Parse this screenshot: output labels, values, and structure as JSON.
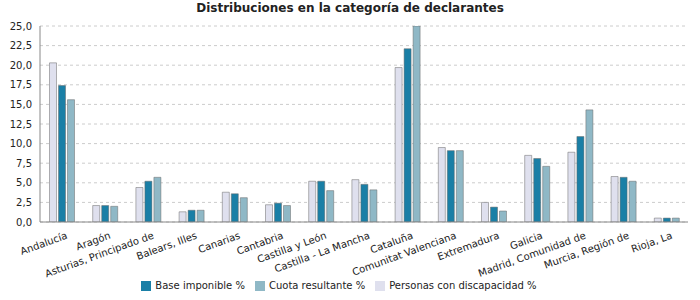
{
  "chart_data": {
    "type": "bar",
    "title": "Distribuciones en la categoría de declarantes",
    "categories": [
      "Andalucía",
      "Aragón",
      "Asturias, Principado de",
      "Balears, Illes",
      "Canarias",
      "Cantabria",
      "Castilla y León",
      "Castilla - La Mancha",
      "Cataluña",
      "Comunitat Valenciana",
      "Extremadura",
      "Galicia",
      "Madrid, Comunidad de",
      "Murcia, Región de",
      "Rioja, La"
    ],
    "series": [
      {
        "name": "Personas con discapacidad %",
        "color": "#dfe0ee",
        "values": [
          20.3,
          2.1,
          4.4,
          1.3,
          3.8,
          2.2,
          5.2,
          5.4,
          19.7,
          9.5,
          2.5,
          8.5,
          8.9,
          5.8,
          0.5
        ]
      },
      {
        "name": "Base imponible %",
        "color": "#1a7fa6",
        "values": [
          17.4,
          2.1,
          5.2,
          1.5,
          3.6,
          2.4,
          5.2,
          4.8,
          22.1,
          9.1,
          1.9,
          8.1,
          10.9,
          5.7,
          0.5
        ]
      },
      {
        "name": "Cuota resultante %",
        "color": "#8fb8c6",
        "values": [
          15.6,
          2.0,
          5.7,
          1.5,
          3.1,
          2.1,
          4.0,
          4.1,
          25.0,
          9.1,
          1.4,
          7.1,
          14.3,
          5.2,
          0.5
        ]
      }
    ],
    "ylim": [
      0,
      25
    ],
    "yticks": [
      {
        "value": 0,
        "label": "0,0"
      },
      {
        "value": 2.5,
        "label": "2,5"
      },
      {
        "value": 5,
        "label": "5,0"
      },
      {
        "value": 7.5,
        "label": "7,5"
      },
      {
        "value": 10,
        "label": "10,0"
      },
      {
        "value": 12.5,
        "label": "12,5"
      },
      {
        "value": 15,
        "label": "15,0"
      },
      {
        "value": 17.5,
        "label": "17,5"
      },
      {
        "value": 20,
        "label": "20,0"
      },
      {
        "value": 22.5,
        "label": "22,5"
      },
      {
        "value": 25,
        "label": "25,0"
      }
    ],
    "grid": true,
    "legend": "bottom"
  }
}
